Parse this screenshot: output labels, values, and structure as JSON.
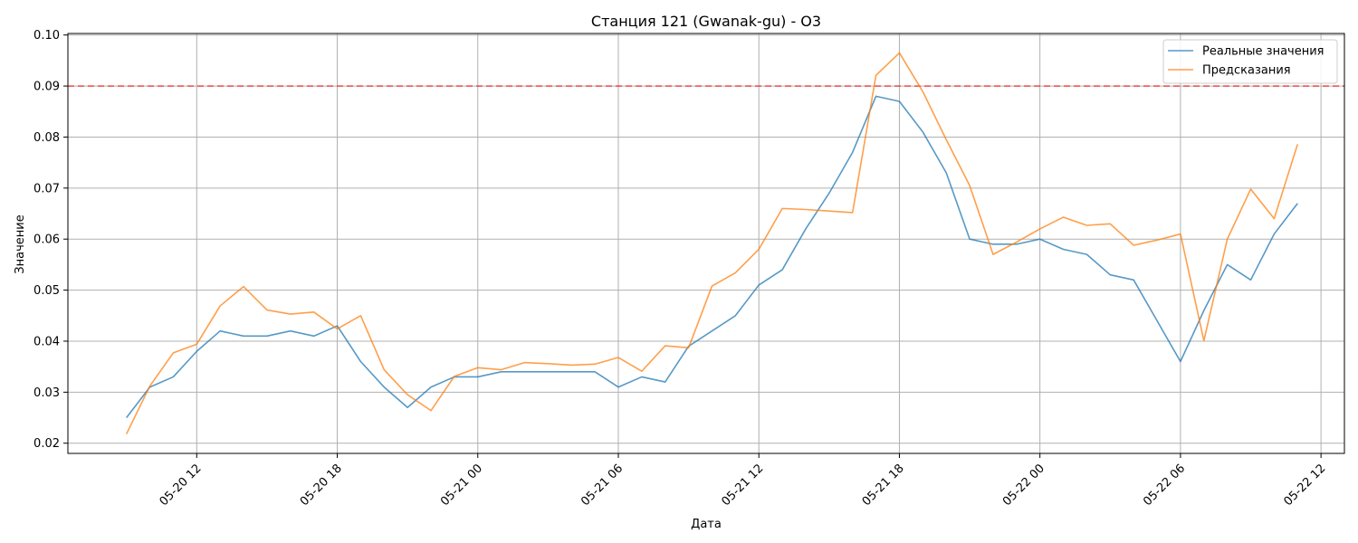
{
  "chart_data": {
    "type": "line",
    "title": "Станция 121 (Gwanak-gu) - O3",
    "xlabel": "Дата",
    "ylabel": "Значение",
    "ylim": [
      0.018,
      0.1003
    ],
    "xlim": [
      "2025-05-20 06:30",
      "2025-05-22 13:00"
    ],
    "yticks": [
      0.02,
      0.03,
      0.04,
      0.05,
      0.06,
      0.07,
      0.08,
      0.09,
      0.1
    ],
    "ytick_labels": [
      "0.02",
      "0.03",
      "0.04",
      "0.05",
      "0.06",
      "0.07",
      "0.08",
      "0.09",
      "0.10"
    ],
    "xticks": [
      "2025-05-20 12:00",
      "2025-05-20 18:00",
      "2025-05-21 00:00",
      "2025-05-21 06:00",
      "2025-05-21 12:00",
      "2025-05-21 18:00",
      "2025-05-22 00:00",
      "2025-05-22 06:00",
      "2025-05-22 12:00"
    ],
    "xtick_labels": [
      "05-20 12",
      "05-20 18",
      "05-21 00",
      "05-21 06",
      "05-21 12",
      "05-21 18",
      "05-22 00",
      "05-22 06",
      "05-22 12"
    ],
    "grid": true,
    "legend_position": "top-right",
    "threshold": {
      "value": 0.09,
      "color": "#ff0000",
      "style": "dashed"
    },
    "x": [
      "2025-05-20 09:00",
      "2025-05-20 10:00",
      "2025-05-20 11:00",
      "2025-05-20 12:00",
      "2025-05-20 13:00",
      "2025-05-20 14:00",
      "2025-05-20 15:00",
      "2025-05-20 16:00",
      "2025-05-20 17:00",
      "2025-05-20 18:00",
      "2025-05-20 19:00",
      "2025-05-20 20:00",
      "2025-05-20 21:00",
      "2025-05-20 22:00",
      "2025-05-20 23:00",
      "2025-05-21 00:00",
      "2025-05-21 01:00",
      "2025-05-21 02:00",
      "2025-05-21 03:00",
      "2025-05-21 04:00",
      "2025-05-21 05:00",
      "2025-05-21 06:00",
      "2025-05-21 07:00",
      "2025-05-21 08:00",
      "2025-05-21 09:00",
      "2025-05-21 10:00",
      "2025-05-21 11:00",
      "2025-05-21 12:00",
      "2025-05-21 13:00",
      "2025-05-21 14:00",
      "2025-05-21 15:00",
      "2025-05-21 16:00",
      "2025-05-21 17:00",
      "2025-05-21 18:00",
      "2025-05-21 19:00",
      "2025-05-21 20:00",
      "2025-05-21 21:00",
      "2025-05-21 22:00",
      "2025-05-21 23:00",
      "2025-05-22 00:00",
      "2025-05-22 01:00",
      "2025-05-22 02:00",
      "2025-05-22 03:00",
      "2025-05-22 04:00",
      "2025-05-22 05:00",
      "2025-05-22 06:00",
      "2025-05-22 07:00",
      "2025-05-22 08:00",
      "2025-05-22 09:00",
      "2025-05-22 10:00",
      "2025-05-22 11:00"
    ],
    "series": [
      {
        "name": "Реальные значения",
        "color": "#1f77b4",
        "values": [
          0.025,
          0.031,
          0.033,
          0.038,
          0.042,
          0.041,
          0.041,
          0.042,
          0.041,
          0.043,
          0.036,
          0.031,
          0.027,
          0.031,
          0.033,
          0.033,
          0.034,
          0.034,
          0.034,
          0.034,
          0.034,
          0.031,
          0.033,
          0.032,
          0.039,
          0.042,
          0.045,
          0.051,
          0.054,
          0.062,
          0.069,
          0.077,
          0.088,
          0.087,
          0.081,
          0.073,
          0.06,
          0.059,
          0.059,
          0.06,
          0.058,
          0.057,
          0.053,
          0.052,
          0.044,
          0.036,
          0.046,
          0.055,
          0.052,
          0.061,
          0.067
        ]
      },
      {
        "name": "Предсказания",
        "color": "#ff7f0e",
        "values": [
          0.0218,
          0.0312,
          0.0377,
          0.0394,
          0.0469,
          0.0507,
          0.0461,
          0.0453,
          0.0457,
          0.0424,
          0.045,
          0.0344,
          0.0295,
          0.0264,
          0.0331,
          0.0348,
          0.0344,
          0.0358,
          0.0356,
          0.0353,
          0.0355,
          0.0368,
          0.0341,
          0.0391,
          0.0387,
          0.0508,
          0.0534,
          0.058,
          0.066,
          0.0658,
          0.0655,
          0.0652,
          0.0921,
          0.0965,
          0.0889,
          0.0795,
          0.0705,
          0.057,
          0.0594,
          0.062,
          0.0643,
          0.0627,
          0.063,
          0.0588,
          0.0598,
          0.061,
          0.0401,
          0.06,
          0.0698,
          0.064,
          0.0786
        ]
      }
    ]
  }
}
